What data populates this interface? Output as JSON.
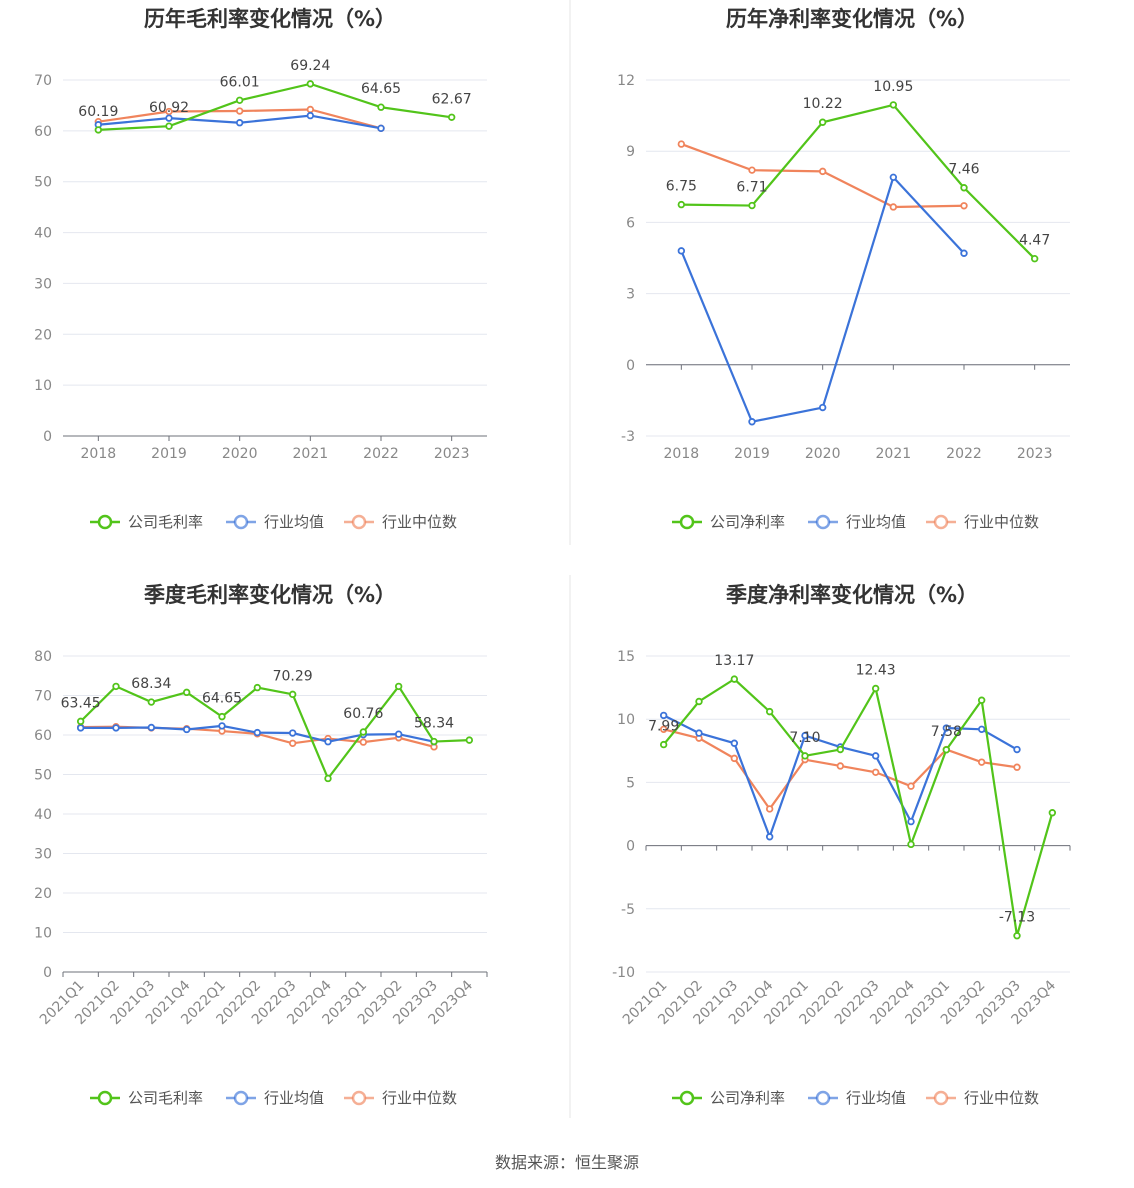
{
  "source_label": "数据来源：恒生聚源",
  "colors": {
    "company": "#52C41A",
    "avg": "#3B73D9",
    "median": "#F0845C"
  },
  "chart_data": [
    {
      "type": "line",
      "title": "历年毛利率变化情况（%）",
      "x": [
        "2018",
        "2019",
        "2020",
        "2021",
        "2022",
        "2023"
      ],
      "ylim": [
        0,
        70
      ],
      "yticks": [
        0,
        10,
        20,
        30,
        40,
        50,
        60,
        70
      ],
      "legend": [
        "公司毛利率",
        "行业均值",
        "行业中位数"
      ],
      "series": [
        {
          "name": "公司毛利率",
          "values": [
            60.19,
            60.92,
            66.01,
            69.24,
            64.65,
            62.67
          ],
          "labels": [
            "60.19",
            "60.92",
            "66.01",
            "69.24",
            "64.65",
            "62.67"
          ]
        },
        {
          "name": "行业均值",
          "values": [
            61.2,
            62.5,
            61.6,
            63.0,
            60.5,
            null
          ]
        },
        {
          "name": "行业中位数",
          "values": [
            61.8,
            63.8,
            63.9,
            64.2,
            60.5,
            null
          ]
        }
      ]
    },
    {
      "type": "line",
      "title": "历年净利率变化情况（%）",
      "x": [
        "2018",
        "2019",
        "2020",
        "2021",
        "2022",
        "2023"
      ],
      "ylim": [
        -3,
        12
      ],
      "yticks": [
        -3,
        0,
        3,
        6,
        9,
        12
      ],
      "legend": [
        "公司净利率",
        "行业均值",
        "行业中位数"
      ],
      "series": [
        {
          "name": "公司净利率",
          "values": [
            6.75,
            6.71,
            10.22,
            10.95,
            7.46,
            4.47
          ],
          "labels": [
            "6.75",
            "6.71",
            "10.22",
            "10.95",
            "7.46",
            "4.47"
          ]
        },
        {
          "name": "行业均值",
          "values": [
            4.8,
            -2.4,
            -1.8,
            7.9,
            4.7,
            null
          ]
        },
        {
          "name": "行业中位数",
          "values": [
            9.3,
            8.2,
            8.15,
            6.65,
            6.7,
            null
          ]
        }
      ]
    },
    {
      "type": "line",
      "title": "季度毛利率变化情况（%）",
      "x": [
        "2021Q1",
        "2021Q2",
        "2021Q3",
        "2021Q4",
        "2022Q1",
        "2022Q2",
        "2022Q3",
        "2022Q4",
        "2023Q1",
        "2023Q2",
        "2023Q3",
        "2023Q4"
      ],
      "ylim": [
        0,
        80
      ],
      "yticks": [
        0,
        10,
        20,
        30,
        40,
        50,
        60,
        70,
        80
      ],
      "legend": [
        "公司毛利率",
        "行业均值",
        "行业中位数"
      ],
      "series": [
        {
          "name": "公司毛利率",
          "values": [
            63.45,
            72.3,
            68.34,
            70.8,
            64.65,
            72.0,
            70.29,
            49.0,
            60.76,
            72.3,
            58.34,
            58.7
          ],
          "labels": [
            "63.45",
            "",
            "68.34",
            "",
            "64.65",
            "",
            "70.29",
            "",
            "60.76",
            "",
            "58.34",
            ""
          ]
        },
        {
          "name": "行业均值",
          "values": [
            61.8,
            61.8,
            61.9,
            61.4,
            62.3,
            60.6,
            60.5,
            58.3,
            60.1,
            60.2,
            58.3,
            null
          ]
        },
        {
          "name": "行业中位数",
          "values": [
            62.0,
            62.1,
            61.8,
            61.6,
            61.0,
            60.3,
            57.9,
            59.1,
            58.2,
            59.3,
            57.0,
            null
          ]
        }
      ]
    },
    {
      "type": "line",
      "title": "季度净利率变化情况（%）",
      "x": [
        "2021Q1",
        "2021Q2",
        "2021Q3",
        "2021Q4",
        "2022Q1",
        "2022Q2",
        "2022Q3",
        "2022Q4",
        "2023Q1",
        "2023Q2",
        "2023Q3",
        "2023Q4"
      ],
      "ylim": [
        -10,
        15
      ],
      "yticks": [
        -10,
        -5,
        0,
        5,
        10,
        15
      ],
      "legend": [
        "公司净利率",
        "行业均值",
        "行业中位数"
      ],
      "series": [
        {
          "name": "公司净利率",
          "values": [
            7.99,
            11.4,
            13.17,
            10.6,
            7.1,
            7.6,
            12.43,
            0.1,
            7.58,
            11.5,
            -7.13,
            2.6
          ],
          "labels": [
            "7.99",
            "",
            "13.17",
            "",
            "7.10",
            "",
            "12.43",
            "",
            "7.58",
            "",
            "-7.13",
            ""
          ]
        },
        {
          "name": "行业均值",
          "values": [
            10.3,
            8.9,
            8.1,
            0.7,
            8.7,
            7.8,
            7.1,
            1.9,
            9.3,
            9.2,
            7.6,
            null
          ]
        },
        {
          "name": "行业中位数",
          "values": [
            9.2,
            8.5,
            6.9,
            2.9,
            6.8,
            6.3,
            5.8,
            4.7,
            7.6,
            6.6,
            6.2,
            null
          ]
        }
      ]
    }
  ]
}
